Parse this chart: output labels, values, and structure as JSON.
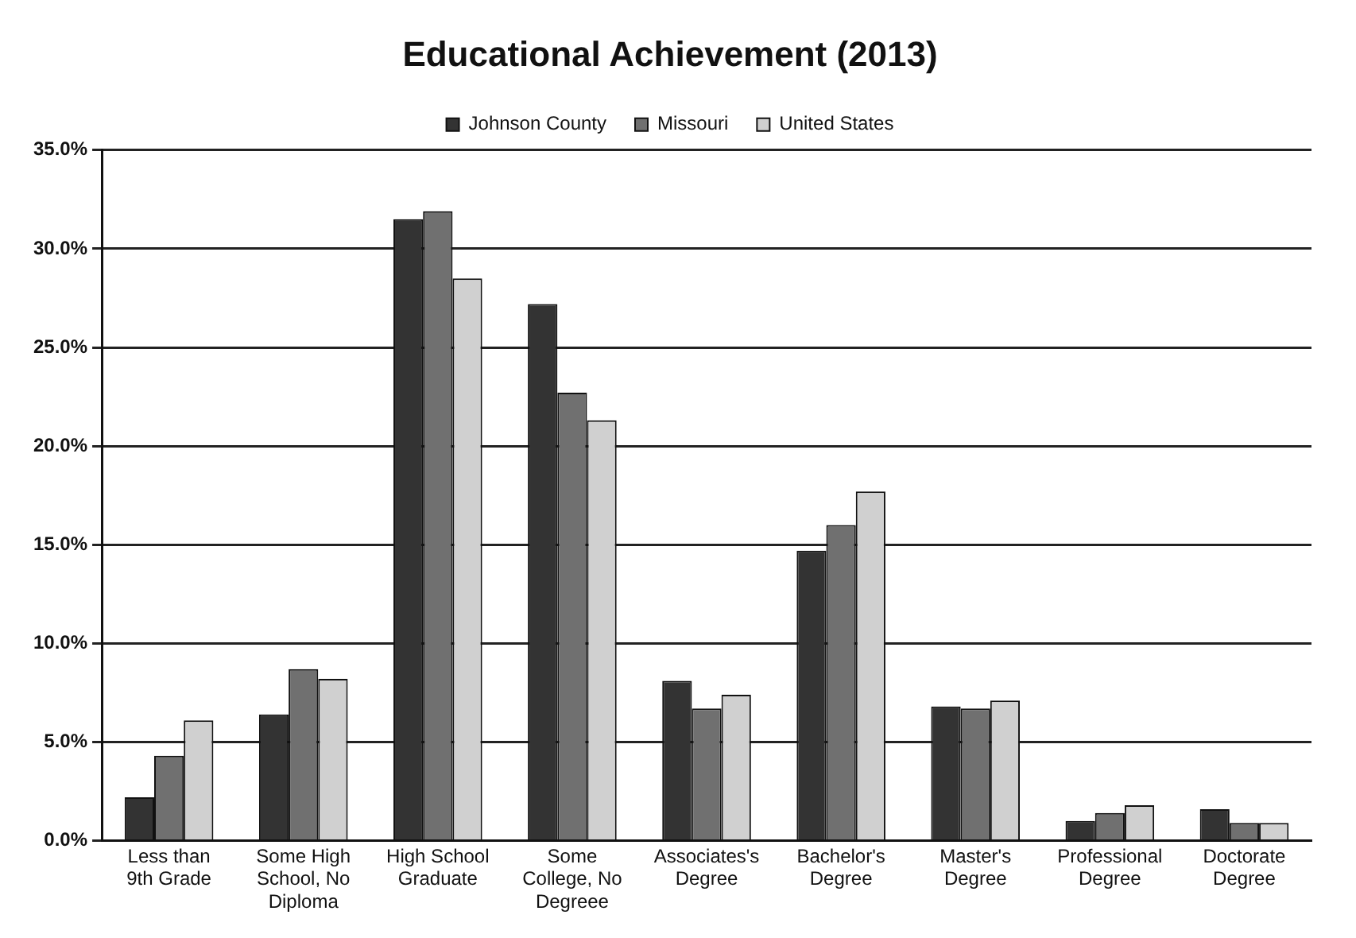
{
  "chart_data": {
    "type": "bar",
    "title": "Educational Achievement (2013)",
    "categories": [
      "Less than 9th Grade",
      "Some High School, No Diploma",
      "High School Graduate",
      "Some College, No Degreee",
      "Associates's Degree",
      "Bachelor's Degree",
      "Master's Degree",
      "Professional Degree",
      "Doctorate Degree"
    ],
    "series": [
      {
        "name": "Johnson County",
        "color": "#333333",
        "values": [
          2.2,
          6.4,
          31.5,
          27.2,
          8.1,
          14.7,
          6.8,
          1.0,
          1.6
        ]
      },
      {
        "name": "Missouri",
        "color": "#707070",
        "values": [
          4.3,
          8.7,
          31.9,
          22.7,
          6.7,
          16.0,
          6.7,
          1.4,
          0.9
        ]
      },
      {
        "name": "United States",
        "color": "#d0d0d0",
        "values": [
          6.1,
          8.2,
          28.5,
          21.3,
          7.4,
          17.7,
          7.1,
          1.8,
          0.9
        ]
      }
    ],
    "ylim": [
      0,
      35
    ],
    "yticks": [
      {
        "value": 0,
        "label": "0.0%"
      },
      {
        "value": 5,
        "label": "5.0%"
      },
      {
        "value": 10,
        "label": "10.0%"
      },
      {
        "value": 15,
        "label": "15.0%"
      },
      {
        "value": 20,
        "label": "20.0%"
      },
      {
        "value": 25,
        "label": "25.0%"
      },
      {
        "value": 30,
        "label": "30.0%"
      },
      {
        "value": 35,
        "label": "35.0%"
      }
    ],
    "grid": "y",
    "legend": "top"
  }
}
